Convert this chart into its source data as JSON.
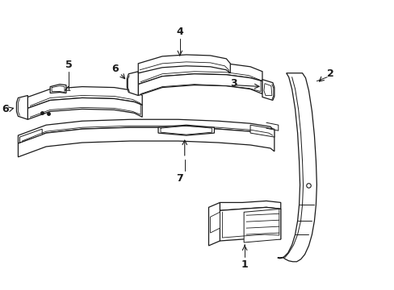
{
  "bg_color": "#ffffff",
  "line_color": "#1a1a1a",
  "lw": 0.9,
  "figsize": [
    4.89,
    3.6
  ],
  "dpi": 100
}
